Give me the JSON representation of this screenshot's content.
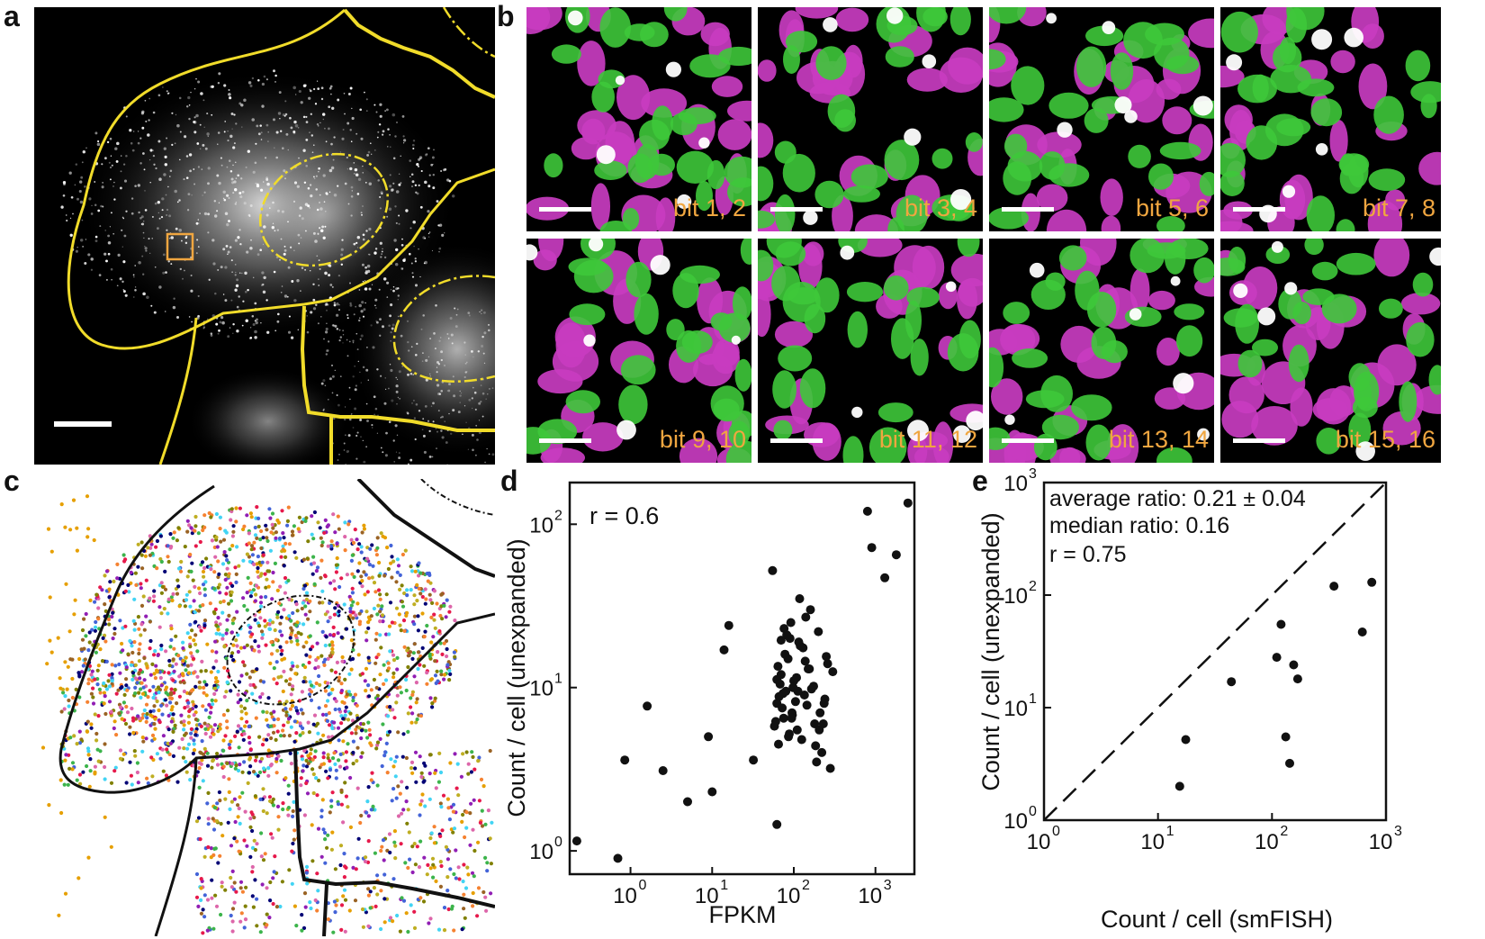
{
  "panel_labels": {
    "a": "a",
    "b": "b",
    "c": "c",
    "d": "d",
    "e": "e"
  },
  "panel_b": {
    "tiles": [
      {
        "label": "bit 1, 2"
      },
      {
        "label": "bit 3, 4"
      },
      {
        "label": "bit 5, 6"
      },
      {
        "label": "bit 7, 8"
      },
      {
        "label": "bit 9, 10"
      },
      {
        "label": "bit 11, 12"
      },
      {
        "label": "bit 13, 14"
      },
      {
        "label": "bit 15, 16"
      }
    ]
  },
  "colors": {
    "outline": "#f1dc2a",
    "roi": "#f0a640",
    "magenta": "#c83cc0",
    "green": "#3ec83a",
    "label_orange": "#f0a640",
    "marker": "#111111"
  },
  "chart_data": [
    {
      "panel": "d",
      "type": "scatter",
      "xlabel": "FPKM",
      "ylabel": "Count / cell (unexpanded)",
      "xscale": "log",
      "yscale": "log",
      "xlim": [
        0.18,
        3000
      ],
      "ylim": [
        0.72,
        180
      ],
      "xticks": [
        1,
        10,
        100,
        1000
      ],
      "xtick_labels": [
        "10",
        "10",
        "10",
        "10"
      ],
      "xtick_exponents": [
        "0",
        "1",
        "2",
        "3"
      ],
      "yticks": [
        1,
        10,
        100
      ],
      "ytick_labels": [
        "10",
        "10",
        "10"
      ],
      "ytick_exponents": [
        "0",
        "1",
        "2"
      ],
      "annotations": [
        "r = 0.6"
      ],
      "x": [
        0.22,
        0.7,
        0.85,
        1.6,
        2.5,
        5.0,
        9.0,
        10.0,
        14.0,
        16.0,
        32.0,
        55.0,
        62.0,
        65.0,
        70.0,
        75.0,
        80.0,
        85.0,
        90.0,
        95.0,
        100.0,
        110.0,
        120.0,
        135.0,
        150.0,
        160.0,
        180.0,
        200.0,
        220.0,
        240.0,
        260.0,
        300.0,
        60.0,
        68.0,
        72.0,
        78.0,
        88.0,
        92.0,
        105.0,
        115.0,
        125.0,
        140.0,
        165.0,
        190.0,
        210.0,
        250.0,
        58.0,
        64.0,
        74.0,
        82.0,
        96.0,
        108.0,
        130.0,
        145.0,
        175.0,
        230.0,
        280.0,
        62.0,
        70.0,
        86.0,
        98.0,
        118.0,
        155.0,
        205.0,
        66.0,
        76.0,
        94.0,
        112.0,
        138.0,
        185.0,
        235.0,
        800.0,
        900.0,
        1300.0,
        1800.0,
        2500.0,
        62.0
      ],
      "y": [
        1.15,
        0.9,
        3.6,
        7.7,
        3.1,
        2.0,
        5.0,
        2.3,
        17.0,
        24.0,
        3.6,
        52.0,
        8.0,
        4.5,
        12.0,
        6.5,
        9.5,
        15.0,
        20.0,
        7.0,
        11.0,
        5.5,
        18.0,
        9.0,
        13.0,
        30.0,
        6.0,
        22.0,
        4.0,
        8.5,
        14.0,
        12.5,
        6.2,
        10.5,
        7.5,
        16.0,
        5.2,
        25.0,
        8.2,
        19.0,
        4.8,
        27.0,
        9.8,
        3.5,
        7.0,
        15.5,
        5.8,
        13.5,
        9.2,
        21.0,
        6.8,
        11.5,
        17.5,
        7.8,
        10.2,
        6.0,
        3.2,
        11.2,
        19.5,
        5.0,
        10.0,
        35.0,
        13.0,
        5.5,
        8.8,
        23.0,
        6.5,
        9.5,
        14.5,
        4.4,
        8.0,
        120.0,
        72.0,
        47.0,
        65.0,
        135.0,
        1.45
      ]
    },
    {
      "panel": "e",
      "type": "scatter",
      "xlabel": "Count / cell (smFISH)",
      "ylabel": "Count / cell (unexpanded)",
      "xscale": "log",
      "yscale": "log",
      "xlim": [
        1,
        1000
      ],
      "ylim": [
        1,
        1000
      ],
      "xticks": [
        1,
        10,
        100,
        1000
      ],
      "xtick_labels": [
        "10",
        "10",
        "10",
        "10"
      ],
      "xtick_exponents": [
        "0",
        "1",
        "2",
        "3"
      ],
      "yticks": [
        1,
        10,
        100,
        1000
      ],
      "ytick_labels": [
        "10",
        "10",
        "10",
        "10"
      ],
      "ytick_exponents": [
        "0",
        "1",
        "2",
        "3"
      ],
      "annotations": [
        "average ratio: 0.21 ± 0.04",
        "median ratio: 0.16",
        "r = 0.75"
      ],
      "reference_line": "y = x (dashed)",
      "x": [
        15.5,
        17.5,
        44.0,
        110.0,
        120.0,
        132.0,
        143.0,
        155.0,
        168.0,
        350.0,
        620.0,
        750.0
      ],
      "y": [
        2.0,
        5.2,
        17.0,
        28.0,
        55.0,
        5.5,
        3.2,
        24.0,
        18.0,
        120.0,
        47.0,
        130.0
      ]
    }
  ]
}
